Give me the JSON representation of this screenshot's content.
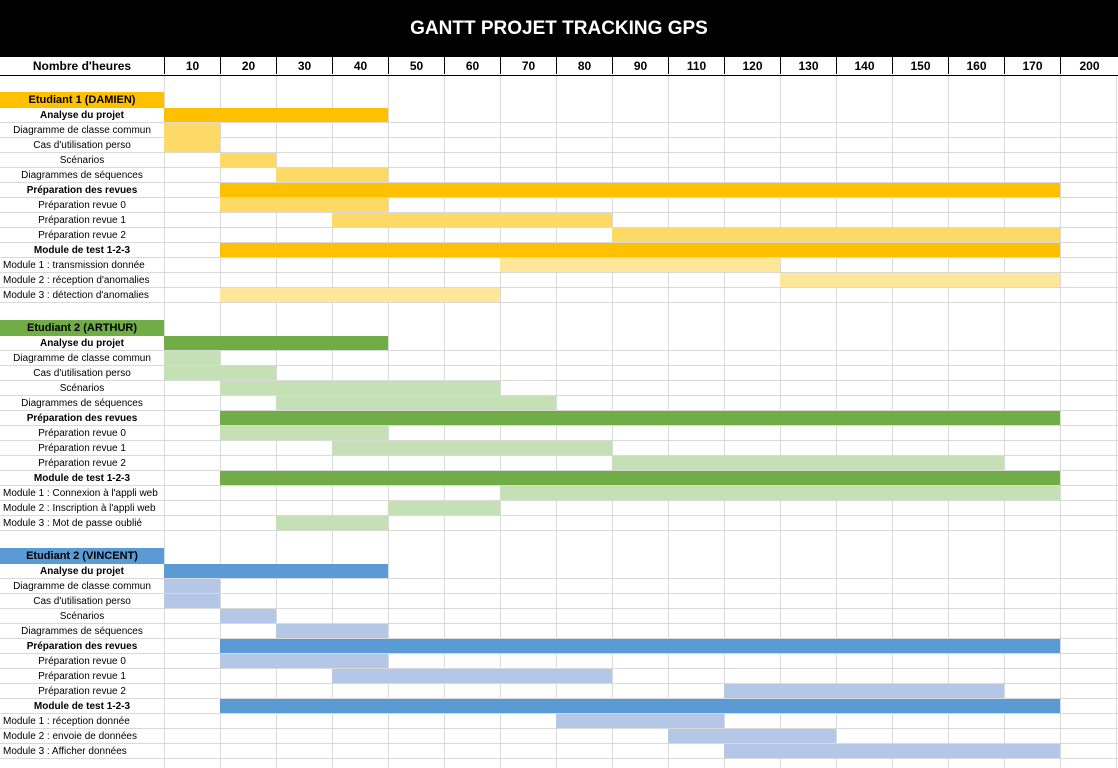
{
  "title": "GANTT PROJET TRACKING GPS",
  "header_label": "Nombre d'heures",
  "chart_data": {
    "type": "gantt",
    "title": "GANTT PROJET TRACKING GPS",
    "x_label": "Nombre d'heures",
    "x_ticks": [
      10,
      20,
      30,
      40,
      50,
      60,
      70,
      80,
      90,
      110,
      120,
      130,
      140,
      150,
      160,
      170,
      200
    ],
    "sections": [
      {
        "name": "Etudiant 1 (DAMIEN)",
        "color_main": "#FFC000",
        "color_light": "#FFD966",
        "color_lighter": "#FFE699",
        "tasks": [
          {
            "label": "Analyse du projet",
            "bold": true,
            "start": 0,
            "end": 4,
            "tone": "main"
          },
          {
            "label": "Diagramme de classe commun",
            "bold": false,
            "start": 0,
            "end": 1,
            "tone": "light"
          },
          {
            "label": "Cas d'utilisation perso",
            "bold": false,
            "start": 0,
            "end": 1,
            "tone": "light"
          },
          {
            "label": "Scénarios",
            "bold": false,
            "start": 1,
            "end": 2,
            "tone": "light"
          },
          {
            "label": "Diagrammes de séquences",
            "bold": false,
            "start": 2,
            "end": 4,
            "tone": "light"
          },
          {
            "label": "Préparation des revues",
            "bold": true,
            "start": 1,
            "end": 16,
            "tone": "main"
          },
          {
            "label": "Préparation revue 0",
            "bold": false,
            "start": 1,
            "end": 4,
            "tone": "light"
          },
          {
            "label": "Préparation revue 1",
            "bold": false,
            "start": 3,
            "end": 8,
            "tone": "light"
          },
          {
            "label": "Préparation revue 2",
            "bold": false,
            "start": 8,
            "end": 16,
            "tone": "light"
          },
          {
            "label": "Module de test 1-2-3",
            "bold": true,
            "start": 1,
            "end": 16,
            "tone": "main"
          },
          {
            "label": "Module 1 : transmission donnée",
            "bold": false,
            "start": 6,
            "end": 11,
            "tone": "lighter",
            "left": true
          },
          {
            "label": "Module 2 : réception d'anomalies",
            "bold": false,
            "start": 11,
            "end": 16,
            "tone": "lighter",
            "left": true
          },
          {
            "label": "Module 3 : détection d'anomalies",
            "bold": false,
            "start": 1,
            "end": 6,
            "tone": "lighter",
            "left": true
          }
        ]
      },
      {
        "name": "Etudiant 2 (ARTHUR)",
        "color_main": "#70AD47",
        "color_light": "#C5E0B4",
        "color_lighter": "#C5E0B4",
        "tasks": [
          {
            "label": "Analyse du projet",
            "bold": true,
            "start": 0,
            "end": 4,
            "tone": "main"
          },
          {
            "label": "Diagramme de classe commun",
            "bold": false,
            "start": 0,
            "end": 1,
            "tone": "light"
          },
          {
            "label": "Cas d'utilisation perso",
            "bold": false,
            "start": 0,
            "end": 2,
            "tone": "light"
          },
          {
            "label": "Scénarios",
            "bold": false,
            "start": 1,
            "end": 6,
            "tone": "light"
          },
          {
            "label": "Diagrammes de séquences",
            "bold": false,
            "start": 2,
            "end": 7,
            "tone": "light"
          },
          {
            "label": "Préparation des revues",
            "bold": true,
            "start": 1,
            "end": 16,
            "tone": "main"
          },
          {
            "label": "Préparation revue 0",
            "bold": false,
            "start": 1,
            "end": 4,
            "tone": "light"
          },
          {
            "label": "Préparation revue 1",
            "bold": false,
            "start": 3,
            "end": 8,
            "tone": "light"
          },
          {
            "label": "Préparation revue 2",
            "bold": false,
            "start": 8,
            "end": 15,
            "tone": "light"
          },
          {
            "label": "Module de test 1-2-3",
            "bold": true,
            "start": 1,
            "end": 16,
            "tone": "main"
          },
          {
            "label": "Module 1 : Connexion à l'appli web",
            "bold": false,
            "start": 6,
            "end": 16,
            "tone": "lighter",
            "left": true
          },
          {
            "label": "Module 2 : Inscription à l'appli web",
            "bold": false,
            "start": 4,
            "end": 6,
            "tone": "lighter",
            "left": true
          },
          {
            "label": "Module 3 : Mot de passe oublié",
            "bold": false,
            "start": 2,
            "end": 4,
            "tone": "lighter",
            "left": true
          }
        ]
      },
      {
        "name": "Etudiant 2 (VINCENT)",
        "color_main": "#5B9BD5",
        "color_light": "#B4C7E7",
        "color_lighter": "#B4C7E7",
        "tasks": [
          {
            "label": "Analyse du projet",
            "bold": true,
            "start": 0,
            "end": 4,
            "tone": "main"
          },
          {
            "label": "Diagramme de classe commun",
            "bold": false,
            "start": 0,
            "end": 1,
            "tone": "light"
          },
          {
            "label": "Cas d'utilisation perso",
            "bold": false,
            "start": 0,
            "end": 1,
            "tone": "light"
          },
          {
            "label": "Scénarios",
            "bold": false,
            "start": 1,
            "end": 2,
            "tone": "light"
          },
          {
            "label": "Diagrammes de séquences",
            "bold": false,
            "start": 2,
            "end": 4,
            "tone": "light"
          },
          {
            "label": "Préparation des revues",
            "bold": true,
            "start": 1,
            "end": 16,
            "tone": "main"
          },
          {
            "label": "Préparation revue 0",
            "bold": false,
            "start": 1,
            "end": 4,
            "tone": "light"
          },
          {
            "label": "Préparation revue 1",
            "bold": false,
            "start": 3,
            "end": 8,
            "tone": "light"
          },
          {
            "label": "Préparation revue 2",
            "bold": false,
            "start": 10,
            "end": 15,
            "tone": "light"
          },
          {
            "label": "Module de test 1-2-3",
            "bold": true,
            "start": 1,
            "end": 16,
            "tone": "main"
          },
          {
            "label": "Module 1 : réception donnée",
            "bold": false,
            "start": 7,
            "end": 10,
            "tone": "lighter",
            "left": true
          },
          {
            "label": "Module 2 : envoie de données",
            "bold": false,
            "start": 9,
            "end": 12,
            "tone": "lighter",
            "left": true
          },
          {
            "label": "Module 3 : Afficher données",
            "bold": false,
            "start": 10,
            "end": 16,
            "tone": "lighter",
            "left": true
          }
        ]
      }
    ]
  }
}
